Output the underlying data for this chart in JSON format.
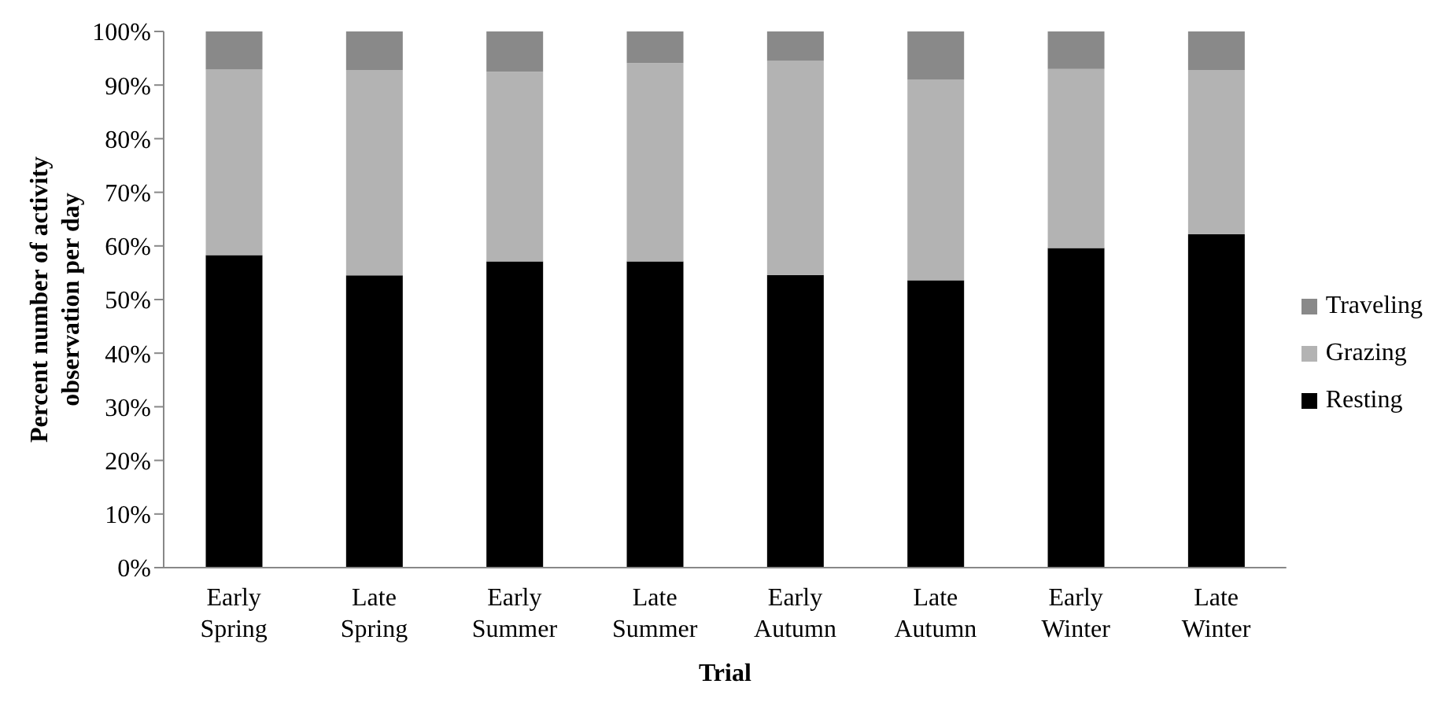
{
  "chart_data": {
    "type": "bar",
    "stacked": true,
    "xlabel": "Trial",
    "ylabel": "Percent number of activity observation per day",
    "categories": [
      "Early Spring",
      "Late Spring",
      "Early Summer",
      "Late Summer",
      "Early Autumn",
      "Late Autumn",
      "Early Winter",
      "Late Winter"
    ],
    "series": [
      {
        "name": "Resting",
        "color": "#000000",
        "values": [
          58.3,
          54.5,
          57.1,
          57.1,
          54.6,
          53.6,
          59.6,
          62.2
        ]
      },
      {
        "name": "Grazing",
        "color": "#b3b3b3",
        "values": [
          34.6,
          38.3,
          35.4,
          37.0,
          39.9,
          37.4,
          33.4,
          30.6
        ]
      },
      {
        "name": "Traveling",
        "color": "#898989",
        "values": [
          7.1,
          7.2,
          7.5,
          5.9,
          5.5,
          9.0,
          7.0,
          7.2
        ]
      }
    ],
    "ylim": [
      0,
      100
    ],
    "yticks": [
      {
        "value": 0,
        "label": "0%"
      },
      {
        "value": 10,
        "label": "10%"
      },
      {
        "value": 20,
        "label": "20%"
      },
      {
        "value": 30,
        "label": "30%"
      },
      {
        "value": 40,
        "label": "40%"
      },
      {
        "value": 50,
        "label": "50%"
      },
      {
        "value": 60,
        "label": "60%"
      },
      {
        "value": 70,
        "label": "70%"
      },
      {
        "value": 80,
        "label": "80%"
      },
      {
        "value": 90,
        "label": "90%"
      },
      {
        "value": 100,
        "label": "100%"
      }
    ],
    "grid": false,
    "legend": "right"
  }
}
